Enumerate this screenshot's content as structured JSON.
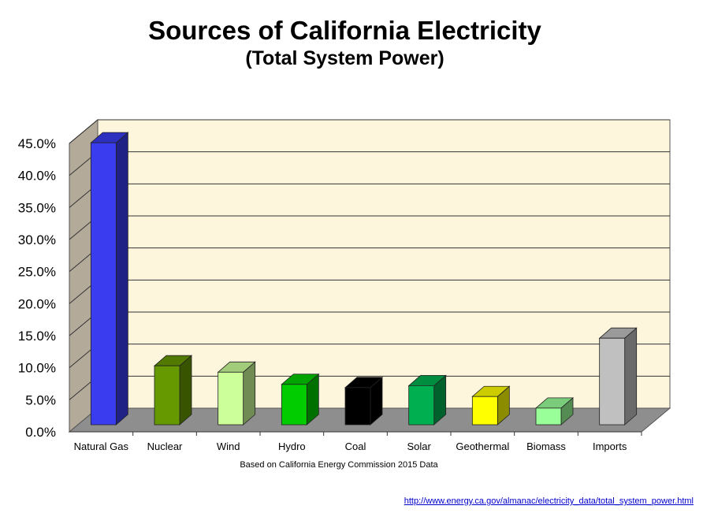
{
  "chart_data": {
    "type": "bar",
    "title": "Sources of California Electricity",
    "subtitle": "(Total System Power)",
    "xlabel": "Based on California Energy Commission 2015 Data",
    "ylabel": "",
    "ylim": [
      0,
      45
    ],
    "yticks": [
      "0.0%",
      "5.0%",
      "10.0%",
      "15.0%",
      "20.0%",
      "25.0%",
      "30.0%",
      "35.0%",
      "40.0%",
      "45.0%"
    ],
    "grid": true,
    "three_d": true,
    "categories": [
      "Natural Gas",
      "Nuclear",
      "Wind",
      "Hydro",
      "Coal",
      "Solar",
      "Geothermal",
      "Biomass",
      "Imports"
    ],
    "values": [
      44.0,
      9.2,
      8.2,
      6.3,
      5.8,
      6.1,
      4.4,
      2.6,
      13.5
    ],
    "colors": [
      "#3a3cf0",
      "#669900",
      "#ccff99",
      "#00cc00",
      "#000000",
      "#00b050",
      "#ffff00",
      "#99ff99",
      "#c0c0c0"
    ]
  },
  "source_url": "http://www.energy.ca.gov/almanac/electricity_data/total_system_power.html"
}
